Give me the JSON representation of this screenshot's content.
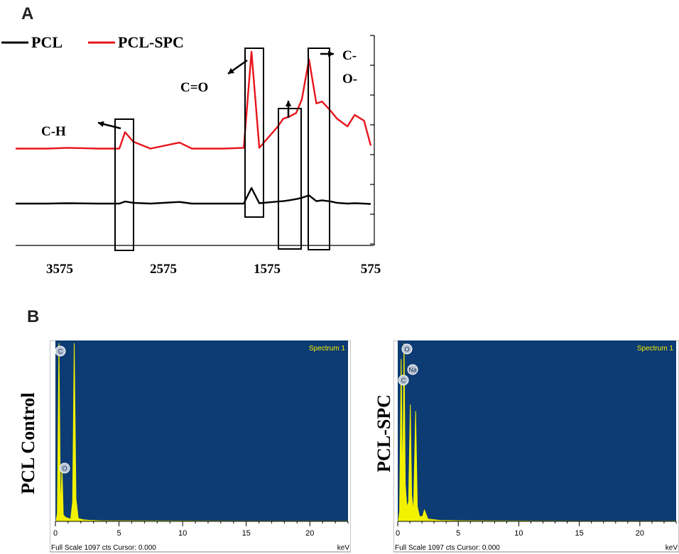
{
  "panel_a_letter": "A",
  "panel_b_letter": "B",
  "chart_data": [
    {
      "type": "line",
      "panel": "A",
      "title": "",
      "xlabel": "",
      "ylabel": "",
      "x_reversed": true,
      "x_ticks": [
        "3575",
        "2575",
        "1575",
        "575"
      ],
      "xlim": [
        4000,
        575
      ],
      "legend": {
        "placement": "top-left",
        "entries": [
          "PCL",
          "PCL-SPC"
        ]
      },
      "series": [
        {
          "name": "PCL",
          "color": "#000000",
          "x": [
            4000,
            3700,
            3500,
            3200,
            3000,
            2945,
            2865,
            2700,
            2420,
            2300,
            2000,
            1800,
            1725,
            1650,
            1470,
            1420,
            1365,
            1295,
            1240,
            1170,
            1100,
            1045,
            960,
            900,
            800,
            730,
            640,
            575
          ],
          "y": [
            0.12,
            0.12,
            0.13,
            0.12,
            0.12,
            0.17,
            0.14,
            0.12,
            0.16,
            0.12,
            0.12,
            0.12,
            0.5,
            0.13,
            0.17,
            0.18,
            0.2,
            0.23,
            0.26,
            0.32,
            0.18,
            0.2,
            0.17,
            0.14,
            0.12,
            0.13,
            0.12,
            0.11
          ]
        },
        {
          "name": "PCL-SPC",
          "color": "#e8141c",
          "x": [
            4000,
            3700,
            3500,
            3200,
            3000,
            2945,
            2865,
            2700,
            2420,
            2300,
            2000,
            1800,
            1725,
            1650,
            1470,
            1420,
            1365,
            1295,
            1240,
            1170,
            1100,
            1045,
            960,
            900,
            800,
            730,
            640,
            575
          ],
          "y": [
            0.12,
            0.12,
            0.14,
            0.12,
            0.12,
            0.55,
            0.3,
            0.12,
            0.28,
            0.12,
            0.12,
            0.14,
            2.65,
            0.14,
            0.7,
            0.9,
            0.95,
            1.05,
            1.4,
            2.45,
            1.3,
            1.35,
            1.1,
            0.9,
            0.7,
            1.0,
            0.85,
            0.2
          ]
        }
      ],
      "annotations": [
        "C-H",
        "C=O",
        "C-",
        "O-"
      ]
    },
    {
      "type": "line",
      "panel": "B-left",
      "title": "Spectrum 1",
      "ylabel": "PCL Control",
      "xlabel": "keV",
      "xlim": [
        0,
        23
      ],
      "x_ticks": [
        0,
        5,
        10,
        15,
        20
      ],
      "footer": "Full Scale 1097 cts Cursor: 0.000",
      "element_labels": [
        "C",
        "O"
      ],
      "series": [
        {
          "name": "",
          "x": [
            0.05,
            0.15,
            0.28,
            0.4,
            0.52,
            0.62,
            0.8,
            1.2,
            1.35,
            1.48,
            1.62,
            1.8,
            2.2,
            2.6,
            3.5,
            5,
            10,
            15,
            20,
            23
          ],
          "y": [
            2,
            50,
            1097,
            60,
            330,
            40,
            25,
            14,
            120,
            1097,
            140,
            18,
            10,
            7,
            4,
            3,
            2,
            1,
            1,
            1
          ]
        }
      ]
    },
    {
      "type": "line",
      "panel": "B-right",
      "title": "Spectrum 1",
      "ylabel": "PCL-SPC",
      "xlabel": "keV",
      "xlim": [
        0,
        23
      ],
      "x_ticks": [
        0,
        5,
        10,
        15,
        20
      ],
      "footer": "Full Scale 1097 cts Cursor: 0.000",
      "element_labels": [
        "O",
        "C",
        "Na"
      ],
      "series": [
        {
          "name": "",
          "x": [
            0.05,
            0.15,
            0.28,
            0.4,
            0.52,
            0.62,
            0.75,
            0.9,
            1.04,
            1.15,
            1.3,
            1.48,
            1.62,
            1.8,
            2.05,
            2.2,
            2.5,
            3.5,
            5,
            10,
            15,
            20,
            23
          ],
          "y": [
            2,
            60,
            1000,
            200,
            1097,
            230,
            90,
            120,
            720,
            160,
            60,
            680,
            90,
            30,
            30,
            70,
            14,
            6,
            4,
            2,
            1,
            1,
            1
          ]
        }
      ]
    }
  ]
}
